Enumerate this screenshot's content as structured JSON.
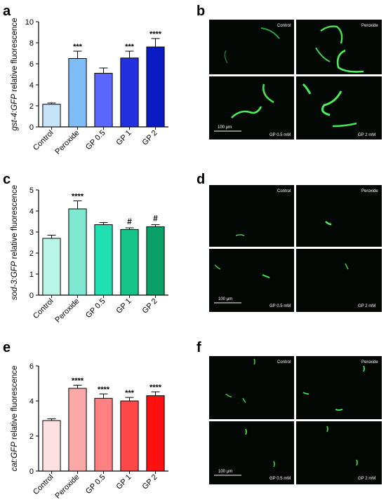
{
  "panels": {
    "a": "a",
    "b": "b",
    "c": "c",
    "d": "d",
    "e": "e",
    "f": "f"
  },
  "micro_labels": {
    "control": "Control",
    "peroxide": "Peroxide",
    "gp05": "GP 0.5 mM",
    "gp2": "GP 2 mM",
    "scale": "100 µm"
  },
  "chart_data": [
    {
      "panel": "a",
      "type": "bar",
      "categories": [
        "Control",
        "Peroxide",
        "GP 0.5",
        "GP 1",
        "GP 2"
      ],
      "values": [
        2.15,
        6.5,
        5.1,
        6.55,
        7.6
      ],
      "errors": [
        0.12,
        0.7,
        0.5,
        0.65,
        0.8
      ],
      "annotations": [
        "",
        "***",
        "",
        "***",
        "****"
      ],
      "ylabel_italic": "gst-4:GFP",
      "ylabel_rest": " relative fluorescence",
      "ylim": [
        0,
        10
      ],
      "yticks": [
        0,
        2,
        4,
        6,
        8,
        10
      ],
      "colors": [
        "#c7e3f8",
        "#7fbdf6",
        "#5a66ff",
        "#2230e0",
        "#0a1bc4"
      ]
    },
    {
      "panel": "c",
      "type": "bar",
      "categories": [
        "Control",
        "Peroxide",
        "GP 0.5",
        "GP 1",
        "GP 2"
      ],
      "values": [
        2.7,
        4.1,
        3.35,
        3.12,
        3.25
      ],
      "errors": [
        0.15,
        0.38,
        0.1,
        0.08,
        0.1
      ],
      "annotations": [
        "",
        "****",
        "",
        "#",
        "#"
      ],
      "ylabel_italic": "sod-3:GFP",
      "ylabel_rest": " relative fluorescence",
      "ylim": [
        0,
        5
      ],
      "yticks": [
        0,
        1,
        2,
        3,
        4,
        5
      ],
      "colors": [
        "#b8f5e6",
        "#7fe8d0",
        "#1fe0b0",
        "#16c489",
        "#0aa067"
      ]
    },
    {
      "panel": "e",
      "type": "bar",
      "categories": [
        "Control",
        "Peroxide",
        "GP 0.5",
        "GP 1",
        "GP 2"
      ],
      "values": [
        2.88,
        4.72,
        4.15,
        4.0,
        4.3
      ],
      "errors": [
        0.1,
        0.18,
        0.25,
        0.2,
        0.22
      ],
      "annotations": [
        "",
        "****",
        "****",
        "***",
        "****"
      ],
      "ylabel_italic": "cat:GFP",
      "ylabel_rest": " relative fluorescence",
      "ylim": [
        0,
        6
      ],
      "yticks": [
        0,
        2,
        4,
        6
      ],
      "colors": [
        "#fde0e0",
        "#faa8a8",
        "#ff8080",
        "#ff4848",
        "#ff1010"
      ]
    }
  ]
}
